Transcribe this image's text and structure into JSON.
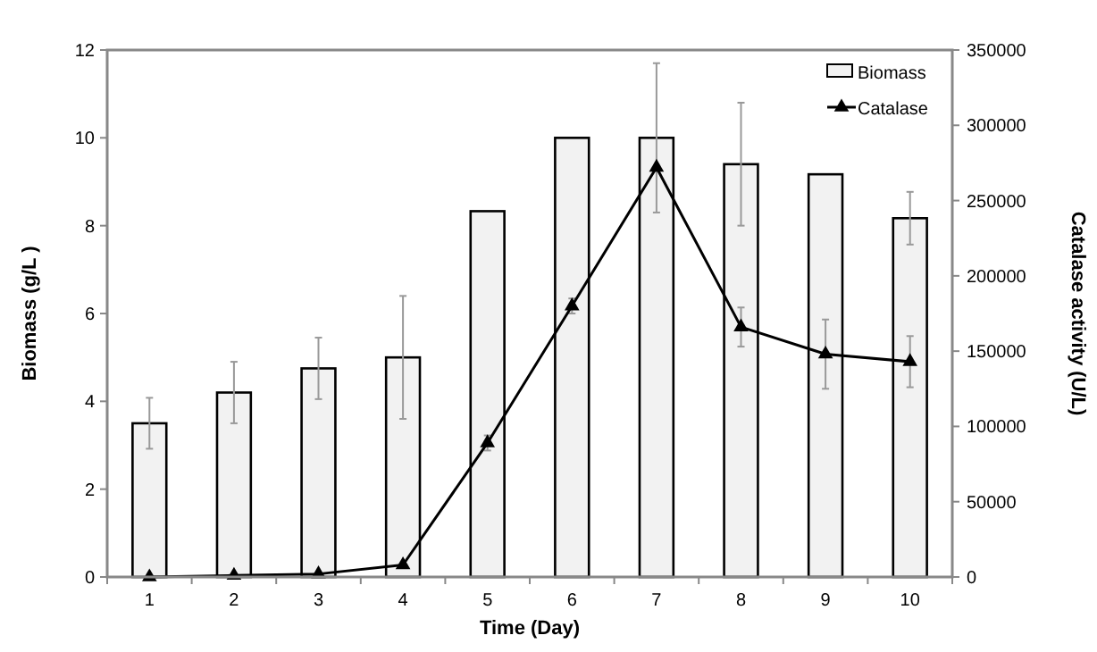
{
  "chart_data": {
    "type": "bar",
    "xlabel": "Time (Day)",
    "ylabel": "Biomass (g/L )",
    "y2label": "Catalase activity (U/L)",
    "categories": [
      "1",
      "2",
      "3",
      "4",
      "5",
      "6",
      "7",
      "8",
      "9",
      "10"
    ],
    "series": [
      {
        "name": "Biomass",
        "color": "#f2f2f2",
        "values": [
          3.5,
          4.2,
          4.75,
          5.0,
          8.33,
          10.0,
          10.0,
          9.4,
          9.17,
          8.17
        ],
        "errors": [
          0.58,
          0.7,
          0.7,
          1.4,
          null,
          null,
          1.7,
          1.4,
          null,
          0.6
        ]
      },
      {
        "name": "Catalase",
        "type": "line",
        "axis": "y2",
        "color": "#000000",
        "marker": "triangle",
        "values": [
          0,
          1000,
          2000,
          8000,
          89000,
          180000,
          272000,
          166000,
          148000,
          143000
        ],
        "errors": [
          null,
          null,
          null,
          null,
          5000,
          5000,
          null,
          13000,
          23000,
          17000
        ]
      }
    ],
    "ylim": [
      0,
      12
    ],
    "yticks": [
      0,
      2,
      4,
      6,
      8,
      10,
      12
    ],
    "y2lim": [
      0,
      350000
    ],
    "y2ticks": [
      0,
      50000,
      100000,
      150000,
      200000,
      250000,
      300000,
      350000
    ],
    "grid": false,
    "legend": "top right"
  }
}
